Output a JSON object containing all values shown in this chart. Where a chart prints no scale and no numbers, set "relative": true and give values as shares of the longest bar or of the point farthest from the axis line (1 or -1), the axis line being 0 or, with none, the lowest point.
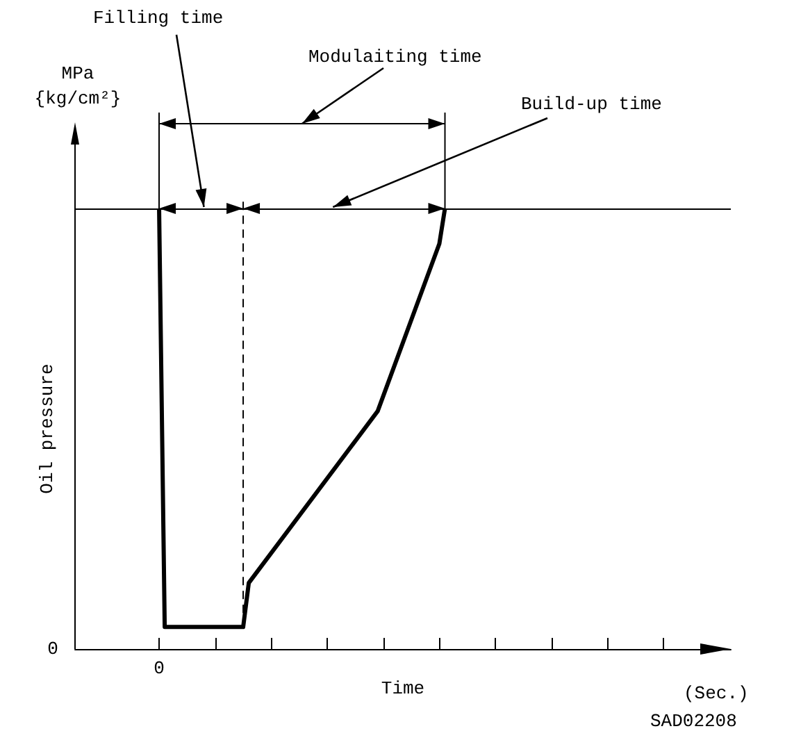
{
  "chart_data": {
    "type": "line",
    "relative": true,
    "xlabel": "Time",
    "ylabel": "Oil pressure",
    "categories": [
      null,
      null,
      null,
      null,
      null,
      null,
      null,
      null,
      null,
      null,
      null,
      null,
      null,
      null,
      null,
      null,
      null,
      null,
      null,
      null,
      null,
      null,
      null,
      null,
      null,
      null,
      null,
      null,
      null,
      null,
      null,
      null,
      null,
      null,
      null,
      null,
      null,
      null,
      null,
      null,
      null,
      null,
      null,
      null,
      null,
      null,
      null,
      null,
      null,
      null,
      null,
      null,
      null,
      null,
      null,
      null,
      null,
      null,
      null,
      null,
      null,
      null,
      null,
      null,
      null,
      null,
      null,
      null,
      null,
      null,
      null,
      null,
      null,
      null,
      null,
      null,
      null,
      null,
      null,
      null,
      null,
      null,
      null,
      null,
      null,
      null,
      null,
      null,
      null,
      null,
      null,
      null,
      null,
      null,
      null,
      null,
      null,
      null,
      null,
      null,
      null,
      null,
      null,
      null,
      null,
      null,
      null,
      null,
      null,
      null,
      null,
      null,
      null,
      null,
      null,
      null,
      null,
      null
    ],
    "series": [
      {
        "color": "#000000",
        "values": [
          null,
          null,
          null,
          null,
          null,
          null,
          null,
          null,
          null,
          null,
          null,
          null,
          null,
          null,
          null,
          1,
          0.05,
          null,
          null,
          null,
          null,
          null,
          null,
          null,
          null,
          null,
          null,
          null,
          null,
          null,
          0.05,
          0.15,
          null,
          null,
          null,
          null,
          null,
          null,
          null,
          null,
          null,
          null,
          null,
          null,
          null,
          null,
          null,
          null,
          null,
          null,
          null,
          null,
          null,
          null,
          0.54,
          null,
          null,
          null,
          null,
          null,
          null,
          null,
          null,
          null,
          null,
          0.92,
          1,
          null,
          null,
          null,
          null,
          null,
          null,
          null,
          null,
          null,
          null,
          null,
          null,
          null,
          null,
          null,
          null,
          null,
          null,
          null,
          null,
          null,
          null,
          null,
          null,
          null,
          null,
          null,
          null,
          null,
          null,
          null,
          null,
          null,
          null,
          null,
          null,
          null,
          null,
          null,
          null,
          null,
          null,
          null,
          null,
          null,
          null,
          null,
          null,
          null,
          null,
          null
        ]
      }
    ],
    "ref_lines": [
      {
        "axis": "y",
        "value": 1,
        "color": "#000000",
        "line_style": "solid"
      }
    ],
    "marker": "none",
    "line_style": "solid",
    "annotations": [
      "Filling time",
      "Modulaiting time",
      "Build-up time",
      "MPa\n{kg/cm²}",
      "0",
      "0",
      "(Sec.)",
      "SAD02208"
    ]
  }
}
